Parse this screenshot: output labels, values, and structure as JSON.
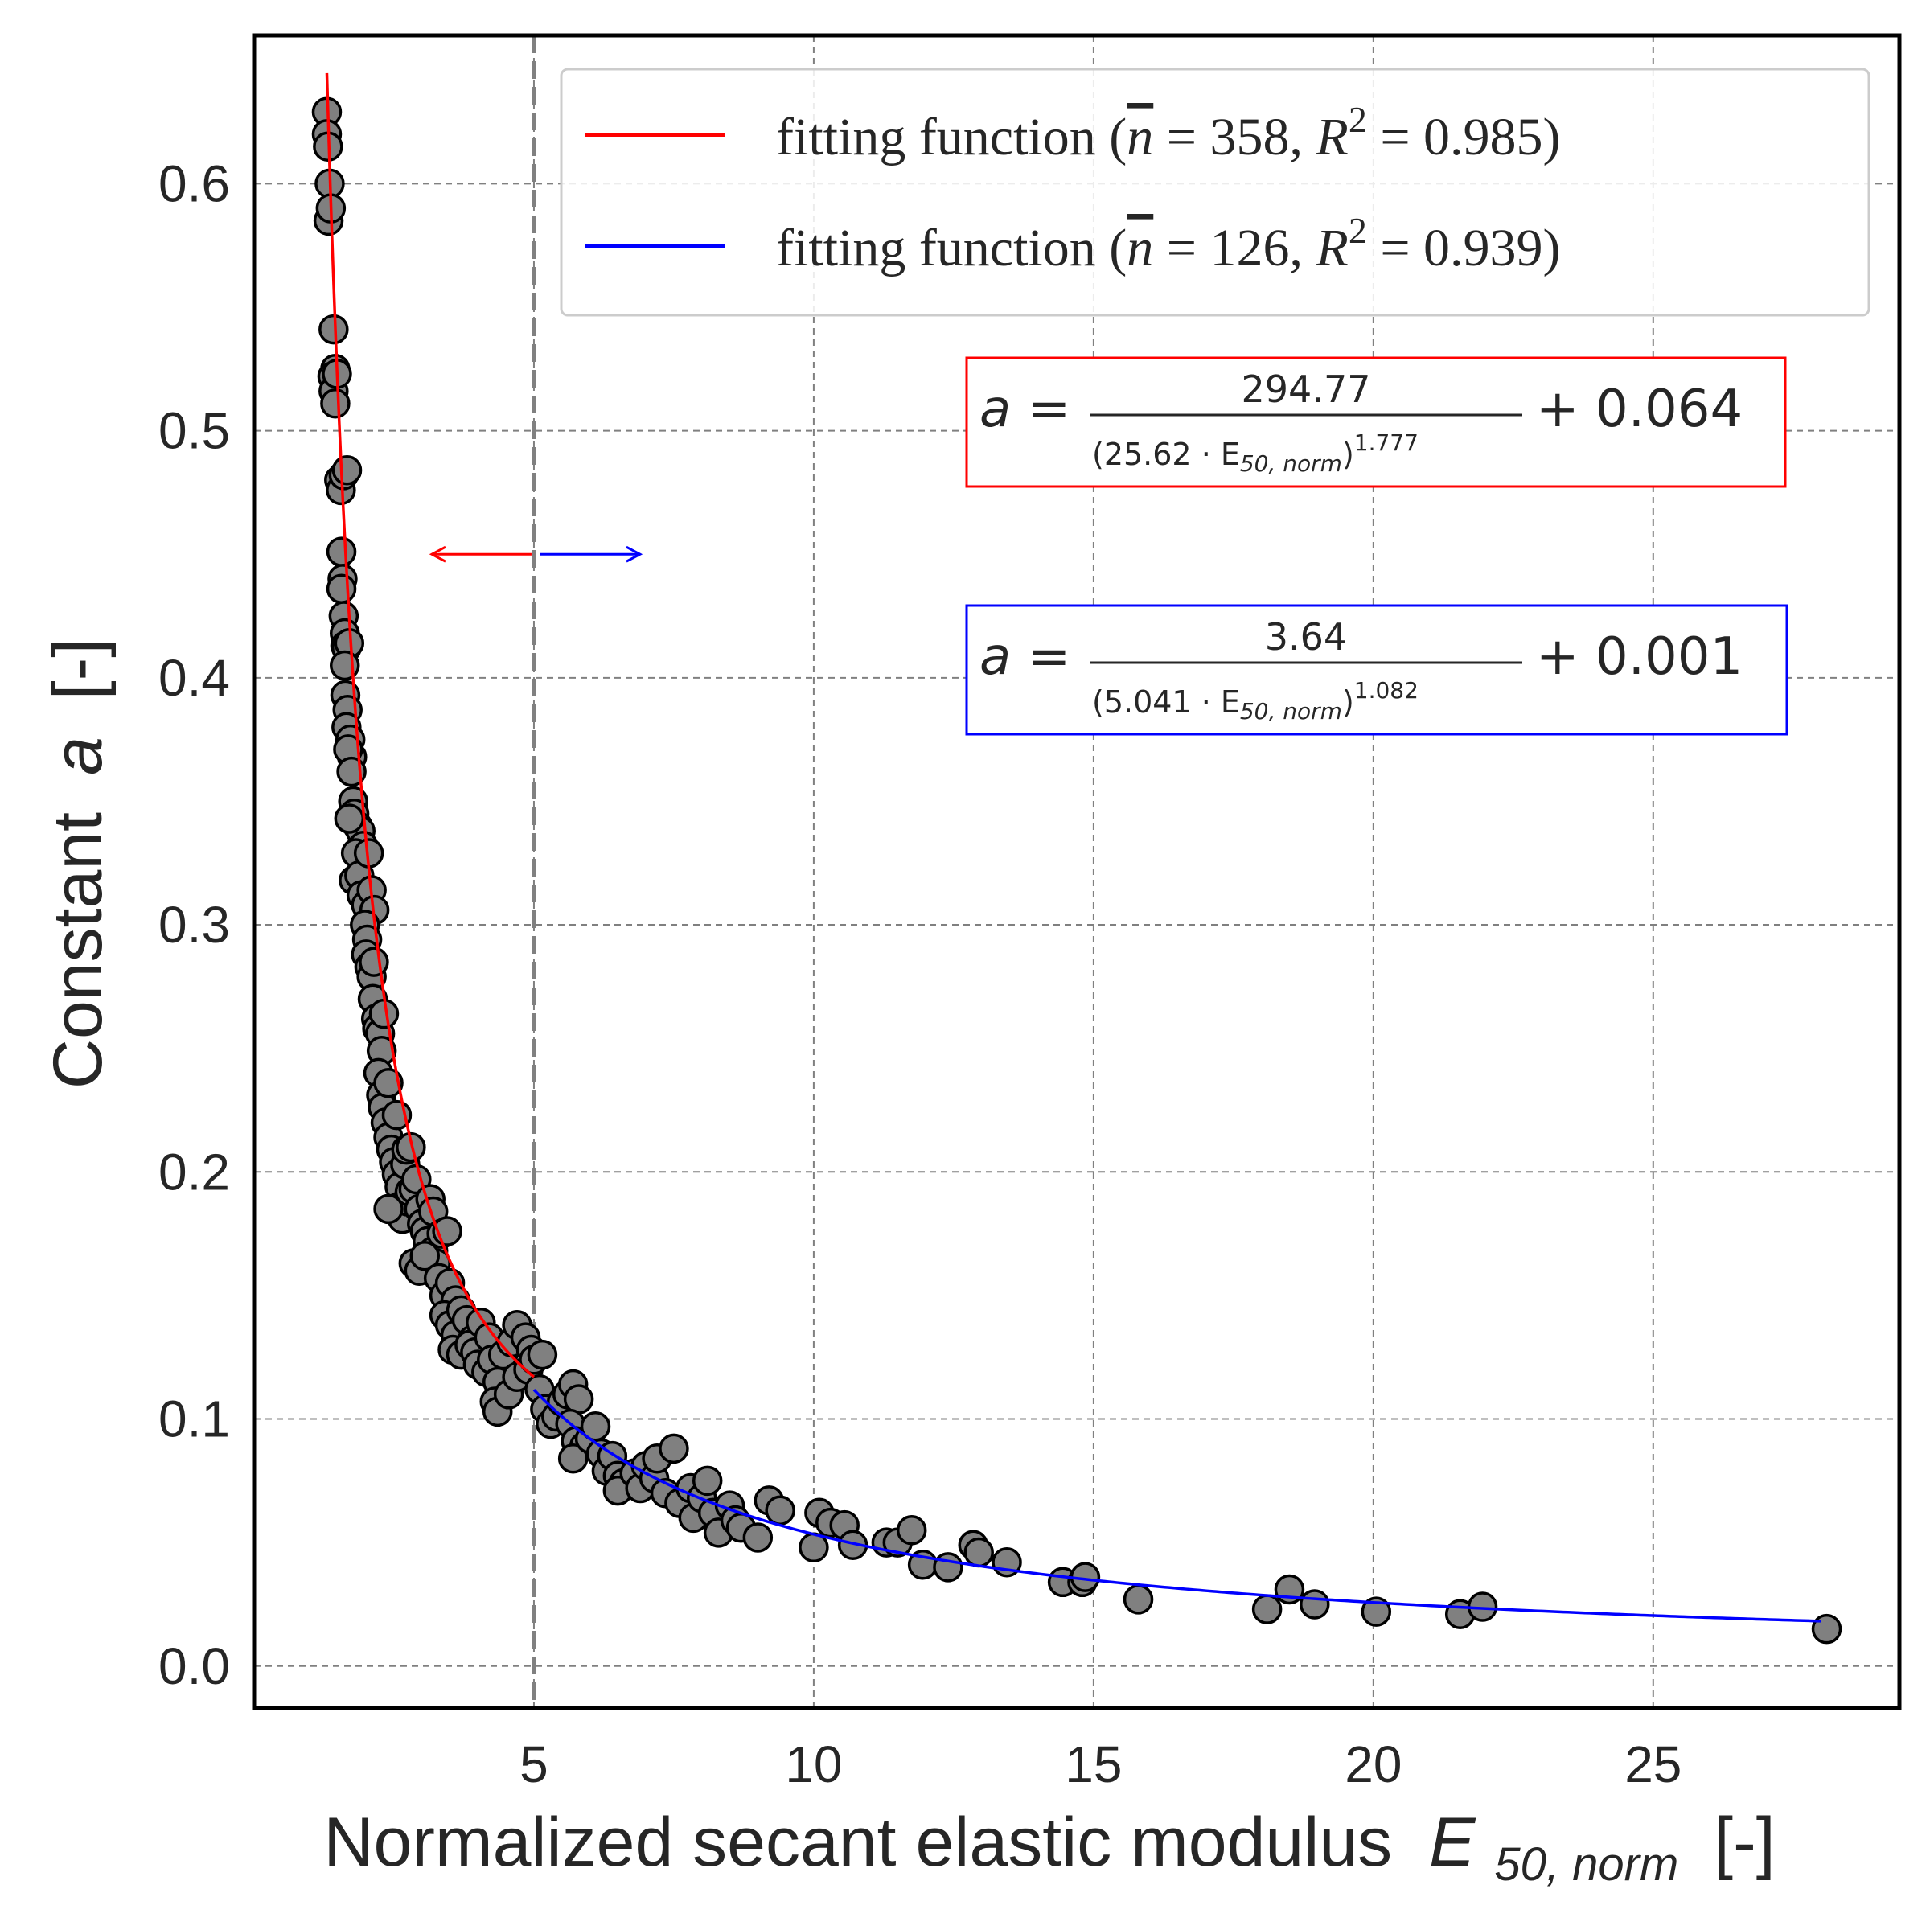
{
  "chart_data": {
    "type": "scatter",
    "xlabel": "Normalized secant elastic modulus",
    "xlabel_symbol": "E",
    "xlabel_subscript": "50, norm",
    "xlabel_unit": "[-]",
    "ylabel": "Constant",
    "ylabel_symbol": "a",
    "ylabel_unit": "[-]",
    "xlim": [
      0,
      29.4
    ],
    "ylim": [
      -0.017,
      0.66
    ],
    "xticks": [
      5,
      10,
      15,
      20,
      25
    ],
    "yticks": [
      0.0,
      0.1,
      0.2,
      0.3,
      0.4,
      0.5,
      0.6
    ],
    "xtick_labels": [
      "5",
      "10",
      "15",
      "20",
      "25"
    ],
    "ytick_labels": [
      "0.0",
      "0.1",
      "0.2",
      "0.3",
      "0.4",
      "0.5",
      "0.6"
    ],
    "grid": true,
    "legend_position": "top-right",
    "threshold_x": 5,
    "marker_color": "#808080",
    "series": [
      {
        "name": "fitting function (n̄ = 358, R² = 0.985)",
        "color": "#ff0000",
        "type": "line",
        "params": {
          "A": 294.77,
          "B": 25.62,
          "p": 1.777,
          "c": 0.064
        },
        "x_range": [
          1.3,
          5.0
        ]
      },
      {
        "name": "fitting function (n̄ = 126, R² = 0.939)",
        "color": "#0000ff",
        "type": "line",
        "params": {
          "A": 3.64,
          "B": 5.041,
          "p": 1.082,
          "c": 0.001
        },
        "x_range": [
          5.0,
          28.0
        ]
      },
      {
        "type": "scatter",
        "points": [
          [
            1.3,
            0.629
          ],
          [
            1.3,
            0.62
          ],
          [
            1.32,
            0.615
          ],
          [
            1.35,
            0.6
          ],
          [
            1.33,
            0.585
          ],
          [
            1.37,
            0.59
          ],
          [
            1.42,
            0.541
          ],
          [
            1.45,
            0.525
          ],
          [
            1.4,
            0.522
          ],
          [
            1.42,
            0.516
          ],
          [
            1.45,
            0.511
          ],
          [
            1.48,
            0.523
          ],
          [
            1.52,
            0.48
          ],
          [
            1.55,
            0.476
          ],
          [
            1.6,
            0.482
          ],
          [
            1.66,
            0.484
          ],
          [
            1.56,
            0.451
          ],
          [
            1.58,
            0.44
          ],
          [
            1.56,
            0.436
          ],
          [
            1.6,
            0.425
          ],
          [
            1.62,
            0.418
          ],
          [
            1.63,
            0.413
          ],
          [
            1.65,
            0.412
          ],
          [
            1.7,
            0.414
          ],
          [
            1.62,
            0.405
          ],
          [
            1.63,
            0.393
          ],
          [
            1.67,
            0.387
          ],
          [
            1.65,
            0.38
          ],
          [
            1.72,
            0.375
          ],
          [
            1.75,
            0.368
          ],
          [
            1.68,
            0.371
          ],
          [
            1.74,
            0.362
          ],
          [
            1.77,
            0.35
          ],
          [
            1.79,
            0.345
          ],
          [
            1.85,
            0.34
          ],
          [
            1.9,
            0.338
          ],
          [
            1.95,
            0.332
          ],
          [
            1.7,
            0.343
          ],
          [
            1.82,
            0.329
          ],
          [
            1.78,
            0.318
          ],
          [
            1.88,
            0.32
          ],
          [
            1.92,
            0.312
          ],
          [
            2.0,
            0.308
          ],
          [
            2.05,
            0.329
          ],
          [
            2.1,
            0.314
          ],
          [
            2.15,
            0.306
          ],
          [
            1.98,
            0.3
          ],
          [
            2.02,
            0.294
          ],
          [
            2.0,
            0.288
          ],
          [
            2.06,
            0.283
          ],
          [
            2.1,
            0.279
          ],
          [
            2.14,
            0.285
          ],
          [
            2.12,
            0.27
          ],
          [
            2.18,
            0.262
          ],
          [
            2.2,
            0.258
          ],
          [
            2.25,
            0.256
          ],
          [
            2.28,
            0.249
          ],
          [
            2.32,
            0.264
          ],
          [
            2.22,
            0.24
          ],
          [
            2.27,
            0.231
          ],
          [
            2.3,
            0.226
          ],
          [
            2.4,
            0.236
          ],
          [
            2.35,
            0.22
          ],
          [
            2.4,
            0.214
          ],
          [
            2.45,
            0.209
          ],
          [
            2.55,
            0.223
          ],
          [
            2.5,
            0.204
          ],
          [
            2.55,
            0.199
          ],
          [
            2.6,
            0.194
          ],
          [
            2.7,
            0.203
          ],
          [
            2.72,
            0.209
          ],
          [
            2.8,
            0.21
          ],
          [
            2.6,
            0.186
          ],
          [
            2.65,
            0.181
          ],
          [
            2.75,
            0.188
          ],
          [
            2.78,
            0.192
          ],
          [
            2.85,
            0.193
          ],
          [
            2.9,
            0.197
          ],
          [
            2.4,
            0.185
          ],
          [
            2.95,
            0.185
          ],
          [
            3.0,
            0.179
          ],
          [
            3.05,
            0.176
          ],
          [
            3.15,
            0.189
          ],
          [
            3.2,
            0.184
          ],
          [
            3.1,
            0.172
          ],
          [
            3.2,
            0.168
          ],
          [
            3.25,
            0.163
          ],
          [
            3.35,
            0.175
          ],
          [
            3.45,
            0.176
          ],
          [
            2.85,
            0.163
          ],
          [
            2.95,
            0.16
          ],
          [
            3.05,
            0.166
          ],
          [
            3.3,
            0.157
          ],
          [
            3.4,
            0.15
          ],
          [
            3.5,
            0.155
          ],
          [
            3.6,
            0.148
          ],
          [
            3.4,
            0.142
          ],
          [
            3.5,
            0.138
          ],
          [
            3.6,
            0.134
          ],
          [
            3.7,
            0.144
          ],
          [
            3.8,
            0.14
          ],
          [
            3.9,
            0.132
          ],
          [
            3.55,
            0.128
          ],
          [
            3.7,
            0.126
          ],
          [
            3.85,
            0.13
          ],
          [
            3.95,
            0.127
          ],
          [
            4.05,
            0.139
          ],
          [
            4.2,
            0.133
          ],
          [
            4.0,
            0.122
          ],
          [
            4.15,
            0.119
          ],
          [
            4.25,
            0.124
          ],
          [
            4.35,
            0.115
          ],
          [
            4.45,
            0.126
          ],
          [
            4.6,
            0.131
          ],
          [
            4.7,
            0.138
          ],
          [
            4.85,
            0.133
          ],
          [
            4.95,
            0.128
          ],
          [
            4.3,
            0.107
          ],
          [
            4.35,
            0.103
          ],
          [
            4.55,
            0.11
          ],
          [
            4.7,
            0.117
          ],
          [
            4.9,
            0.12
          ],
          [
            5.0,
            0.124
          ],
          [
            5.15,
            0.126
          ],
          [
            5.1,
            0.112
          ],
          [
            5.2,
            0.104
          ],
          [
            5.3,
            0.098
          ],
          [
            5.4,
            0.101
          ],
          [
            5.5,
            0.107
          ],
          [
            5.6,
            0.11
          ],
          [
            5.7,
            0.114
          ],
          [
            5.8,
            0.108
          ],
          [
            5.65,
            0.098
          ],
          [
            5.75,
            0.091
          ],
          [
            5.9,
            0.089
          ],
          [
            5.7,
            0.084
          ],
          [
            6.0,
            0.092
          ],
          [
            6.1,
            0.097
          ],
          [
            6.2,
            0.086
          ],
          [
            6.3,
            0.079
          ],
          [
            6.4,
            0.085
          ],
          [
            6.5,
            0.077
          ],
          [
            6.6,
            0.074
          ],
          [
            6.5,
            0.071
          ],
          [
            6.8,
            0.078
          ],
          [
            6.9,
            0.072
          ],
          [
            7.0,
            0.081
          ],
          [
            7.15,
            0.076
          ],
          [
            7.2,
            0.084
          ],
          [
            7.35,
            0.07
          ],
          [
            7.5,
            0.088
          ],
          [
            7.6,
            0.066
          ],
          [
            7.8,
            0.072
          ],
          [
            7.85,
            0.06
          ],
          [
            8.0,
            0.068
          ],
          [
            8.1,
            0.075
          ],
          [
            8.2,
            0.062
          ],
          [
            8.3,
            0.054
          ],
          [
            8.5,
            0.065
          ],
          [
            8.6,
            0.059
          ],
          [
            8.7,
            0.056
          ],
          [
            9.0,
            0.052
          ],
          [
            9.2,
            0.067
          ],
          [
            9.4,
            0.063
          ],
          [
            10.0,
            0.048
          ],
          [
            10.1,
            0.062
          ],
          [
            10.3,
            0.058
          ],
          [
            10.55,
            0.057
          ],
          [
            10.7,
            0.049
          ],
          [
            11.3,
            0.05
          ],
          [
            11.5,
            0.05
          ],
          [
            11.75,
            0.055
          ],
          [
            11.95,
            0.041
          ],
          [
            12.4,
            0.04
          ],
          [
            12.85,
            0.049
          ],
          [
            12.95,
            0.046
          ],
          [
            13.45,
            0.042
          ],
          [
            14.45,
            0.034
          ],
          [
            14.8,
            0.034
          ],
          [
            14.85,
            0.036
          ],
          [
            15.8,
            0.027
          ],
          [
            18.1,
            0.023
          ],
          [
            18.5,
            0.031
          ],
          [
            18.95,
            0.025
          ],
          [
            20.05,
            0.022
          ],
          [
            21.55,
            0.021
          ],
          [
            21.95,
            0.024
          ],
          [
            28.1,
            0.015
          ]
        ]
      }
    ],
    "equations": [
      {
        "color": "#ff0000",
        "prefix": "a",
        "numerator": "294.77",
        "base": "(25.62 · E",
        "sub": "50, norm",
        "exp": "1.777",
        "tail": "+ 0.064"
      },
      {
        "color": "#0000ff",
        "prefix": "a",
        "numerator": "3.64",
        "base": "(5.041 · E",
        "sub": "50, norm",
        "exp": "1.082",
        "tail": "+ 0.001"
      }
    ],
    "legend": [
      {
        "pre": "fitting function (",
        "nbar": "n",
        "mid": " = 358, ",
        "r": "R",
        "sup": "2",
        "post": " = 0.985)"
      },
      {
        "pre": "fitting function (",
        "nbar": "n",
        "mid": " = 126, ",
        "r": "R",
        "sup": "2",
        "post": " = 0.939)"
      }
    ]
  }
}
